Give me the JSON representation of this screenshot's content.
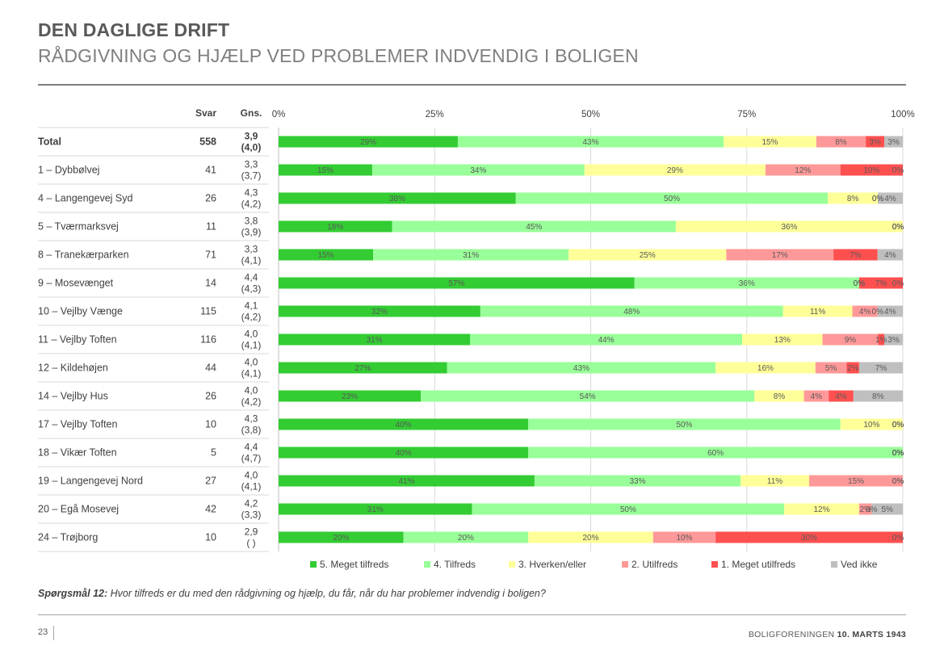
{
  "header": {
    "title": "DEN DAGLIGE DRIFT",
    "subtitle": "RÅDGIVNING OG HJÆLP VED PROBLEMER INDVENDIG I BOLIGEN"
  },
  "question": {
    "label": "Spørgsmål 12:",
    "text": " Hvor tilfreds er du med den rådgivning og hjælp, du får, når du har problemer indvendig i boligen?"
  },
  "footer": {
    "page_number": "23",
    "org": "BOLIGFORENINGEN ",
    "date": "10. MARTS 1943"
  },
  "chart_data": {
    "type": "bar",
    "orientation": "horizontal",
    "stacked": "percent",
    "column_headers": {
      "svar": "Svar",
      "gns": "Gns."
    },
    "x_ticks": [
      "0%",
      "25%",
      "50%",
      "75%",
      "100%"
    ],
    "xlim": [
      0,
      100
    ],
    "series": [
      {
        "name": "5. Meget tilfreds",
        "color": "#33cc33"
      },
      {
        "name": "4. Tilfreds",
        "color": "#99ff99"
      },
      {
        "name": "3. Hverken/eller",
        "color": "#ffff99"
      },
      {
        "name": "2. Utilfreds",
        "color": "#ff9999"
      },
      {
        "name": "1. Meget utilfreds",
        "color": "#ff5050"
      },
      {
        "name": "Ved ikke",
        "color": "#bfbfbf"
      }
    ],
    "rows": [
      {
        "label": "Total",
        "svar": "558",
        "gns": "3,9",
        "gns_prev": "(4,0)",
        "bold": true,
        "values": [
          29,
          43,
          15,
          8,
          3,
          3
        ]
      },
      {
        "label": "1 – Dybbølvej",
        "svar": "41",
        "gns": "3,3",
        "gns_prev": "(3,7)",
        "values": [
          15,
          34,
          29,
          12,
          10,
          0
        ]
      },
      {
        "label": "4 – Langengevej Syd",
        "svar": "26",
        "gns": "4,3",
        "gns_prev": "(4,2)",
        "values": [
          38,
          50,
          8,
          0,
          0,
          4
        ]
      },
      {
        "label": "5 – Tværmarksvej",
        "svar": "11",
        "gns": "3,8",
        "gns_prev": "(3,9)",
        "values": [
          18,
          45,
          36,
          0,
          0,
          0
        ]
      },
      {
        "label": "8 – Tranekærparken",
        "svar": "71",
        "gns": "3,3",
        "gns_prev": "(4,1)",
        "values": [
          15,
          31,
          25,
          17,
          7,
          4
        ]
      },
      {
        "label": "9 – Mosevænget",
        "svar": "14",
        "gns": "4,4",
        "gns_prev": "(4,3)",
        "values": [
          57,
          36,
          0,
          0,
          7,
          0
        ]
      },
      {
        "label": "10 – Vejlby Vænge",
        "svar": "115",
        "gns": "4,1",
        "gns_prev": "(4,2)",
        "values": [
          32,
          48,
          11,
          4,
          0,
          4
        ]
      },
      {
        "label": "11 – Vejlby Toften",
        "svar": "116",
        "gns": "4,0",
        "gns_prev": "(4,1)",
        "values": [
          31,
          44,
          13,
          9,
          1,
          3
        ]
      },
      {
        "label": "12 – Kildehøjen",
        "svar": "44",
        "gns": "4,0",
        "gns_prev": "(4,1)",
        "values": [
          27,
          43,
          16,
          5,
          2,
          7
        ]
      },
      {
        "label": "14 – Vejlby Hus",
        "svar": "26",
        "gns": "4,0",
        "gns_prev": "(4,2)",
        "values": [
          23,
          54,
          8,
          4,
          4,
          8
        ]
      },
      {
        "label": "17 – Vejlby Toften",
        "svar": "10",
        "gns": "4,3",
        "gns_prev": "(3,8)",
        "values": [
          40,
          50,
          10,
          0,
          0,
          0
        ]
      },
      {
        "label": "18 – Vikær Toften",
        "svar": "5",
        "gns": "4,4",
        "gns_prev": "(4,7)",
        "values": [
          40,
          60,
          0,
          0,
          0,
          0
        ]
      },
      {
        "label": "19 – Langengevej Nord",
        "svar": "27",
        "gns": "4,0",
        "gns_prev": "(4,1)",
        "values": [
          41,
          33,
          11,
          15,
          0,
          0
        ]
      },
      {
        "label": "20 – Egå Mosevej",
        "svar": "42",
        "gns": "4,2",
        "gns_prev": "(3,3)",
        "values": [
          31,
          50,
          12,
          2,
          0,
          5
        ]
      },
      {
        "label": "24 – Trøjborg",
        "svar": "10",
        "gns": "2,9",
        "gns_prev": "(  )",
        "values": [
          20,
          20,
          20,
          10,
          30,
          0
        ]
      }
    ]
  }
}
